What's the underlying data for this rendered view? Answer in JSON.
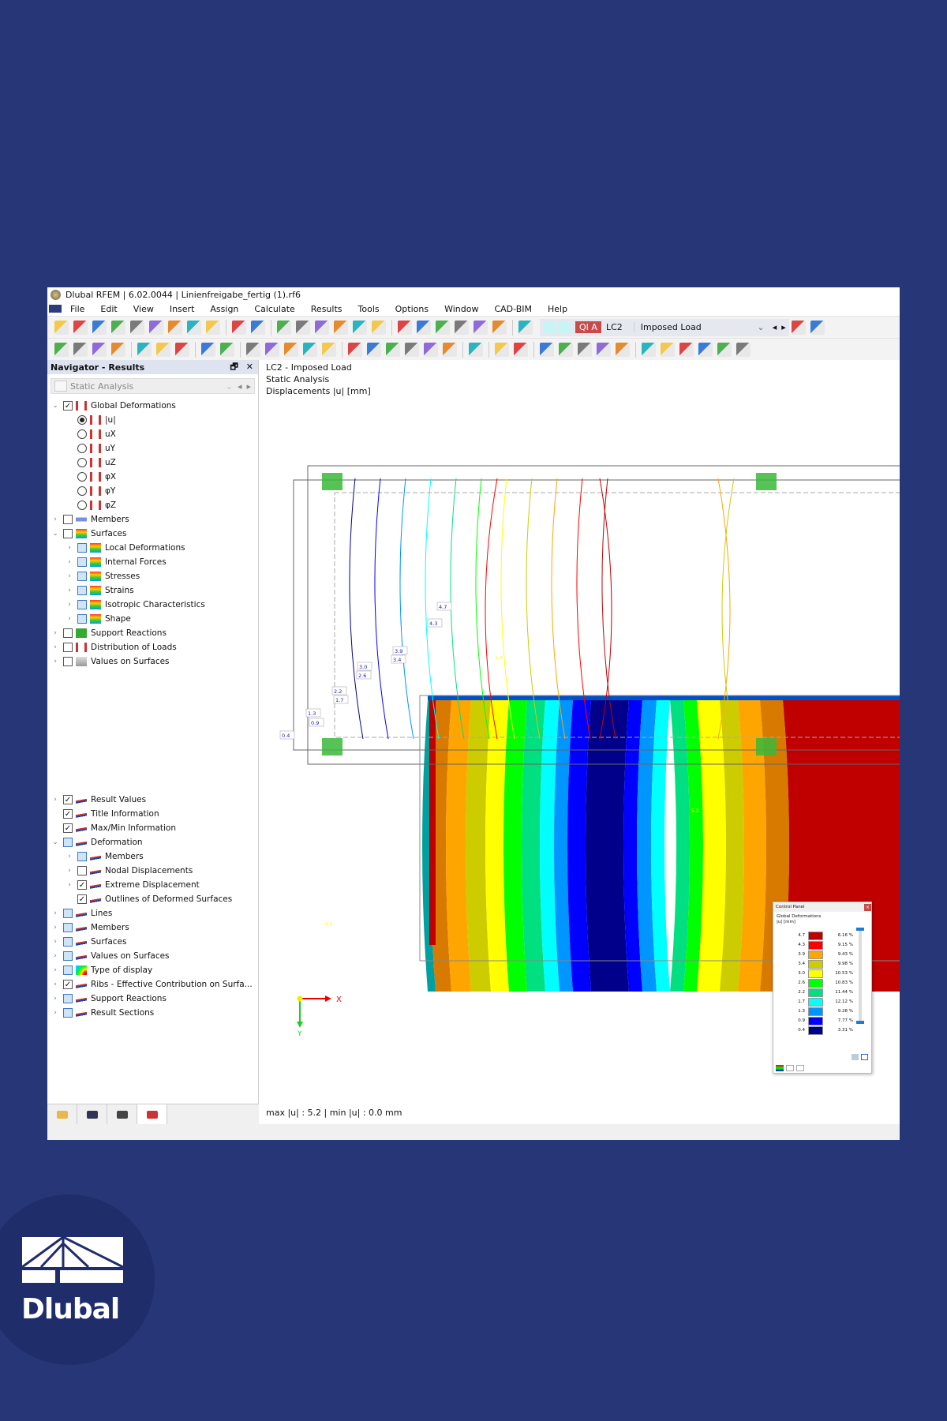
{
  "window": {
    "title": "Dlubal RFEM | 6.02.0044 | Linienfreigabe_fertig (1).rf6"
  },
  "menu": [
    "File",
    "Edit",
    "View",
    "Insert",
    "Assign",
    "Calculate",
    "Results",
    "Tools",
    "Options",
    "Window",
    "CAD-BIM",
    "Help"
  ],
  "toolbar1": {
    "icons_left": [
      "new-model-icon",
      "open-icon",
      "dlubal-center-icon",
      "webservice-icon",
      "print-preview-icon",
      "save-icon",
      "print-icon",
      "report-icon",
      "document-icon",
      "undo-icon",
      "redo-icon",
      "table-icon",
      "table-grid-icon",
      "color-table-icon",
      "console-icon",
      "script-icon",
      "list-icon",
      "parallelogram-icon",
      "target-icon",
      "node-target-icon",
      "surface-select-icon",
      "load-wizard-icon",
      "load-up-icon",
      "load-down-icon"
    ],
    "load_case": {
      "tag": "QI A",
      "id": "LC2",
      "name": "Imposed Load"
    },
    "icons_right": [
      "filter-remove-icon",
      "view-eye-icon"
    ]
  },
  "toolbar2": {
    "icons": [
      "node-icon",
      "line-icon",
      "member-icon",
      "polyline-icon",
      "support-icon",
      "member-support-icon",
      "surface-support-icon",
      "dimension-icon",
      "dimension-xx-icon",
      "surface-icon",
      "solid-icon",
      "opening-icon",
      "section-icon",
      "box-icon",
      "nodal-load-icon",
      "member-load-icon",
      "member-load2-icon",
      "surface-load-icon",
      "coordinate-icon",
      "plane-icon",
      "filter-icon",
      "deformation-icon",
      "animation-icon",
      "member-result-icon",
      "surface-result-icon",
      "solid-result-icon",
      "reaction-icon",
      "line-result-icon",
      "result-line-icon",
      "result-line2-icon",
      "result-line3-icon",
      "support-result-icon",
      "smooth-icon",
      "view-settings-icon"
    ]
  },
  "navigator": {
    "title": "Navigator - Results",
    "combo": "Static Analysis",
    "tree_top": [
      {
        "label": "Global Deformations",
        "lvl": 0,
        "exp": "v",
        "ctl": "check",
        "state": "on",
        "icon": "frame-icon"
      },
      {
        "label": "|u|",
        "lvl": 1,
        "exp": "",
        "ctl": "radio",
        "state": "on",
        "icon": "frame-icon"
      },
      {
        "label": "uX",
        "lvl": 1,
        "exp": "",
        "ctl": "radio",
        "state": "off",
        "icon": "frame-icon"
      },
      {
        "label": "uY",
        "lvl": 1,
        "exp": "",
        "ctl": "radio",
        "state": "off",
        "icon": "frame-icon"
      },
      {
        "label": "uZ",
        "lvl": 1,
        "exp": "",
        "ctl": "radio",
        "state": "off",
        "icon": "frame-icon"
      },
      {
        "label": "φX",
        "lvl": 1,
        "exp": "",
        "ctl": "radio",
        "state": "off",
        "icon": "frame-icon"
      },
      {
        "label": "φY",
        "lvl": 1,
        "exp": "",
        "ctl": "radio",
        "state": "off",
        "icon": "frame-icon"
      },
      {
        "label": "φZ",
        "lvl": 1,
        "exp": "",
        "ctl": "radio",
        "state": "off",
        "icon": "frame-icon"
      },
      {
        "label": "Members",
        "lvl": 0,
        "exp": ">",
        "ctl": "check",
        "state": "off",
        "icon": "member-diagram-icon"
      },
      {
        "label": "Surfaces",
        "lvl": 0,
        "exp": "v",
        "ctl": "check",
        "state": "off",
        "icon": "surface-contour-icon"
      },
      {
        "label": "Local Deformations",
        "lvl": 1,
        "exp": ">",
        "ctl": "check",
        "state": "partial",
        "icon": "surface-contour-icon"
      },
      {
        "label": "Internal Forces",
        "lvl": 1,
        "exp": ">",
        "ctl": "check",
        "state": "partial",
        "icon": "surface-contour-icon"
      },
      {
        "label": "Stresses",
        "lvl": 1,
        "exp": ">",
        "ctl": "check",
        "state": "partial",
        "icon": "surface-contour-icon"
      },
      {
        "label": "Strains",
        "lvl": 1,
        "exp": ">",
        "ctl": "check",
        "state": "partial",
        "icon": "surface-contour-icon"
      },
      {
        "label": "Isotropic Characteristics",
        "lvl": 1,
        "exp": ">",
        "ctl": "check",
        "state": "partial",
        "icon": "surface-contour-icon"
      },
      {
        "label": "Shape",
        "lvl": 1,
        "exp": ">",
        "ctl": "check",
        "state": "partial",
        "icon": "surface-contour-icon"
      },
      {
        "label": "Support Reactions",
        "lvl": 0,
        "exp": ">",
        "ctl": "check",
        "state": "off",
        "icon": "support-reaction-icon"
      },
      {
        "label": "Distribution of Loads",
        "lvl": 0,
        "exp": ">",
        "ctl": "check",
        "state": "off",
        "icon": "frame-icon"
      },
      {
        "label": "Values on Surfaces",
        "lvl": 0,
        "exp": ">",
        "ctl": "check",
        "state": "off",
        "icon": "values-icon"
      }
    ],
    "tree_bottom": [
      {
        "label": "Result Values",
        "lvl": 0,
        "exp": ">",
        "ctl": "check",
        "state": "on",
        "icon": "result-values-icon"
      },
      {
        "label": "Title Information",
        "lvl": 0,
        "exp": "",
        "ctl": "check",
        "state": "on",
        "icon": "display-icon"
      },
      {
        "label": "Max/Min Information",
        "lvl": 0,
        "exp": "",
        "ctl": "check",
        "state": "on",
        "icon": "display-icon"
      },
      {
        "label": "Deformation",
        "lvl": 0,
        "exp": "v",
        "ctl": "check",
        "state": "partial",
        "icon": "display-icon"
      },
      {
        "label": "Members",
        "lvl": 1,
        "exp": ">",
        "ctl": "check",
        "state": "partial",
        "icon": "display-icon"
      },
      {
        "label": "Nodal Displacements",
        "lvl": 1,
        "exp": ">",
        "ctl": "check",
        "state": "off",
        "icon": "display-icon"
      },
      {
        "label": "Extreme Displacement",
        "lvl": 1,
        "exp": ">",
        "ctl": "check",
        "state": "on",
        "icon": "display-icon"
      },
      {
        "label": "Outlines of Deformed Surfaces",
        "lvl": 1,
        "exp": "",
        "ctl": "check",
        "state": "on",
        "icon": "display-icon"
      },
      {
        "label": "Lines",
        "lvl": 0,
        "exp": ">",
        "ctl": "check",
        "state": "partial",
        "icon": "display-icon"
      },
      {
        "label": "Members",
        "lvl": 0,
        "exp": ">",
        "ctl": "check",
        "state": "partial",
        "icon": "display-icon"
      },
      {
        "label": "Surfaces",
        "lvl": 0,
        "exp": ">",
        "ctl": "check",
        "state": "partial",
        "icon": "display-icon"
      },
      {
        "label": "Values on Surfaces",
        "lvl": 0,
        "exp": ">",
        "ctl": "check",
        "state": "partial",
        "icon": "display-icon"
      },
      {
        "label": "Type of display",
        "lvl": 0,
        "exp": ">",
        "ctl": "check",
        "state": "partial",
        "icon": "type-display-icon"
      },
      {
        "label": "Ribs - Effective Contribution on Surfa...",
        "lvl": 0,
        "exp": ">",
        "ctl": "check",
        "state": "on",
        "icon": "display-icon"
      },
      {
        "label": "Support Reactions",
        "lvl": 0,
        "exp": ">",
        "ctl": "check",
        "state": "partial",
        "icon": "display-icon"
      },
      {
        "label": "Result Sections",
        "lvl": 0,
        "exp": ">",
        "ctl": "check",
        "state": "partial",
        "icon": "display-icon"
      }
    ],
    "tabs": [
      "data-tab-icon",
      "view-tab-icon",
      "camera-tab-icon",
      "results-tab-icon"
    ]
  },
  "viewport": {
    "title_lines": [
      "LC2 - Imposed Load",
      "Static Analysis",
      "Displacements |u| [mm]"
    ],
    "maxmin": "max |u| : 5.2 | min |u| : 0.0 mm",
    "axis_x": "X",
    "axis_y": "Y",
    "contour_labels": [
      "4.7",
      "4.3",
      "3.9",
      "3.4",
      "3.0",
      "2.6",
      "2.2",
      "1.7",
      "1.3",
      "0.9",
      "0.4",
      "1.4",
      "5.2",
      "0.7",
      "1.2"
    ]
  },
  "control_panel": {
    "title": "Control Panel",
    "subtitle": "Global Deformations",
    "unit": "|u| [mm]",
    "legend": [
      {
        "value": "4.7",
        "color": "#c00000",
        "pct": "6.16 %"
      },
      {
        "value": "4.3",
        "color": "#ff0000",
        "pct": "9.15 %"
      },
      {
        "value": "3.9",
        "color": "#ffa500",
        "pct": "9.43 %"
      },
      {
        "value": "3.4",
        "color": "#cccc00",
        "pct": "9.98 %"
      },
      {
        "value": "3.0",
        "color": "#ffff00",
        "pct": "10.53 %"
      },
      {
        "value": "2.6",
        "color": "#00ff00",
        "pct": "10.83 %"
      },
      {
        "value": "2.2",
        "color": "#00e080",
        "pct": "11.44 %"
      },
      {
        "value": "1.7",
        "color": "#00ffff",
        "pct": "12.12 %"
      },
      {
        "value": "1.3",
        "color": "#0095ff",
        "pct": "9.28 %"
      },
      {
        "value": "0.9",
        "color": "#0000ff",
        "pct": "7.77 %"
      },
      {
        "value": "0.4",
        "color": "#00008b",
        "pct": "3.31 %"
      }
    ]
  },
  "brand": {
    "logo_text": "Dlubal",
    "background": "#273677"
  }
}
